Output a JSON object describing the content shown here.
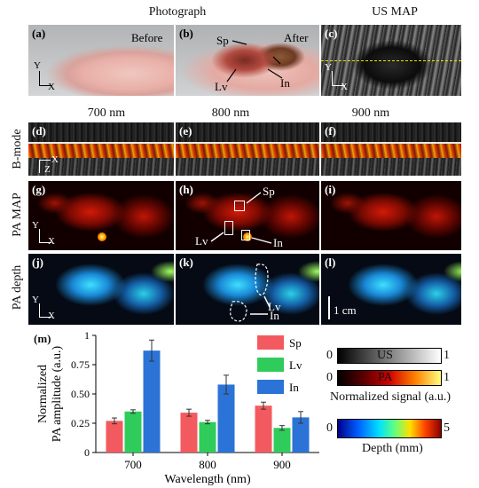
{
  "headers": {
    "photograph": "Photograph",
    "us_map": "US MAP",
    "col1": "700 nm",
    "col2": "800 nm",
    "col3": "900 nm"
  },
  "row_labels": {
    "bmode": "B-mode",
    "pa_map": "PA MAP",
    "pa_depth": "PA depth"
  },
  "panels": {
    "a": "(a)",
    "b": "(b)",
    "c": "(c)",
    "d": "(d)",
    "e": "(e)",
    "f": "(f)",
    "g": "(g)",
    "h": "(h)",
    "i": "(i)",
    "j": "(j)",
    "k": "(k)",
    "l": "(l)",
    "m": "(m)"
  },
  "photo_annotations": {
    "before": "Before",
    "after": "After",
    "sp": "Sp",
    "lv": "Lv",
    "in": "In"
  },
  "axes_labels": {
    "y": "Y",
    "x": "X",
    "z": "Z"
  },
  "pa_annotations": {
    "sp": "Sp",
    "lv": "Lv",
    "in": "In"
  },
  "scale_bar": "1 cm",
  "chart_data": {
    "type": "bar",
    "categories": [
      "700",
      "800",
      "900"
    ],
    "series": [
      {
        "name": "Sp",
        "values": [
          0.27,
          0.34,
          0.4
        ],
        "errors": [
          0.025,
          0.03,
          0.03
        ],
        "color": "#f35a5f"
      },
      {
        "name": "Lv",
        "values": [
          0.35,
          0.26,
          0.21
        ],
        "errors": [
          0.015,
          0.015,
          0.02
        ],
        "color": "#2fcc5b"
      },
      {
        "name": "In",
        "values": [
          0.87,
          0.58,
          0.3
        ],
        "errors": [
          0.09,
          0.08,
          0.05
        ],
        "color": "#2b73d6"
      }
    ],
    "xlabel": "Wavelength (nm)",
    "ylabel_line1": "Normalized",
    "ylabel_line2": "PA amplitude (a.u.)",
    "ylim": [
      0,
      1
    ],
    "yticks": [
      "0",
      "0.25",
      "0.50",
      "0.75",
      "1"
    ],
    "ytick_values": [
      0,
      0.25,
      0.5,
      0.75,
      1
    ],
    "legend_position": "top-right"
  },
  "colorbars": {
    "us": {
      "min": "0",
      "max": "1",
      "label": "US"
    },
    "pa": {
      "min": "0",
      "max": "1",
      "label": "PA"
    },
    "normalized_caption": "Normalized signal (a.u.)",
    "depth": {
      "min": "0",
      "max": "5"
    },
    "depth_caption": "Depth (mm)"
  }
}
